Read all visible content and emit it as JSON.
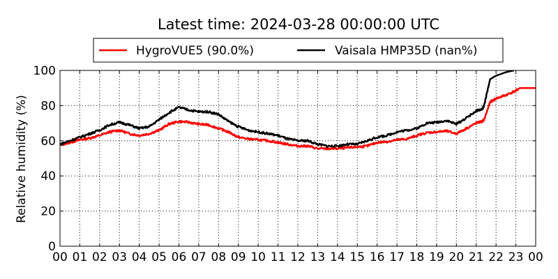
{
  "chart_data": {
    "type": "line",
    "title": "Latest time: 2024-03-28 00:00:00 UTC",
    "xlabel": "",
    "ylabel": "Relative humidity (%)",
    "xlim": [
      0,
      24
    ],
    "ylim": [
      0,
      100
    ],
    "grid": true,
    "legend_placement": "top-center",
    "xticks": [
      "00",
      "01",
      "02",
      "03",
      "04",
      "05",
      "06",
      "07",
      "08",
      "09",
      "10",
      "11",
      "12",
      "13",
      "14",
      "15",
      "16",
      "17",
      "18",
      "19",
      "20",
      "21",
      "22",
      "23",
      "00"
    ],
    "yticks": [
      "0",
      "20",
      "40",
      "60",
      "80",
      "100"
    ],
    "series": [
      {
        "name": "HygroVUE5 (90.0%)",
        "color": "#ff0000",
        "x": [
          0,
          0.5,
          1,
          1.5,
          2,
          2.5,
          3,
          3.5,
          4,
          4.5,
          5,
          5.5,
          6,
          6.5,
          7,
          7.5,
          8,
          8.5,
          9,
          9.5,
          10,
          10.5,
          11,
          11.5,
          12,
          12.5,
          13,
          13.5,
          14,
          14.5,
          15,
          15.5,
          16,
          16.5,
          17,
          17.5,
          18,
          18.5,
          19,
          19.5,
          20,
          20.5,
          21,
          21.3,
          21.4,
          21.7,
          22,
          22.5,
          23,
          23.2,
          24
        ],
        "y": [
          57.5,
          59,
          60.5,
          61.5,
          63,
          65,
          66,
          64,
          63,
          64,
          66,
          69.5,
          71,
          70.5,
          69.5,
          69,
          67,
          65,
          62,
          61,
          60.5,
          60,
          59,
          58,
          57,
          57,
          55.5,
          55.5,
          55.5,
          56,
          56.5,
          57,
          59,
          59.5,
          60.5,
          61,
          63,
          64.5,
          65,
          65.5,
          64,
          67,
          70,
          71,
          72,
          82,
          84,
          86,
          88.5,
          90,
          90
        ]
      },
      {
        "name": "Vaisala HMP35D (nan%)",
        "color": "#000000",
        "x": [
          0,
          0.5,
          1,
          1.5,
          2,
          2.5,
          3,
          3.5,
          4,
          4.5,
          5,
          5.5,
          6,
          6.5,
          7,
          7.5,
          8,
          8.5,
          9,
          9.5,
          10,
          10.5,
          11,
          11.5,
          12,
          12.5,
          13,
          13.5,
          14,
          14.5,
          15,
          15.5,
          16,
          16.5,
          17,
          17.5,
          18,
          18.5,
          19,
          19.5,
          20,
          20.5,
          21,
          21.3,
          21.4,
          21.7,
          22,
          22.5,
          22.9
        ],
        "y": [
          58,
          60,
          62,
          64,
          66,
          69,
          70.5,
          69,
          67,
          68,
          72,
          76,
          79,
          77.5,
          76.5,
          76.5,
          75,
          71,
          68,
          66,
          65,
          64,
          63,
          61,
          60,
          60,
          58,
          57,
          57,
          58,
          58,
          60,
          62,
          63,
          65,
          66,
          67,
          70,
          70.5,
          71.5,
          69.5,
          73,
          77,
          78,
          80,
          95,
          97,
          99,
          100
        ]
      }
    ]
  }
}
